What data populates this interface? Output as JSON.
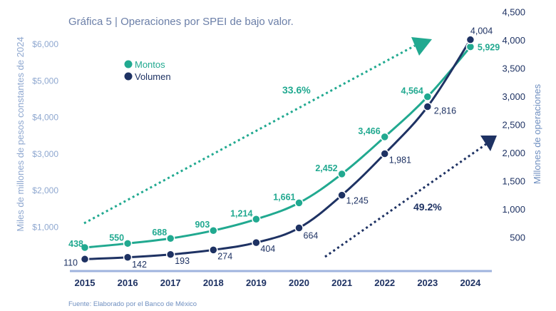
{
  "chart_data": {
    "type": "line",
    "title": "Gráfica 5 | Operaciones por SPEI de bajo valor.",
    "categories": [
      "2015",
      "2016",
      "2017",
      "2018",
      "2019",
      "2020",
      "2021",
      "2022",
      "2023",
      "2024"
    ],
    "y_left": {
      "label": "Miles de millones de pesos constantes de 2024",
      "ticks": [
        "$1,000",
        "$2,000",
        "$3,000",
        "$4,000",
        "$5,000",
        "$6,000"
      ],
      "tick_values": [
        1000,
        2000,
        3000,
        4000,
        5000,
        6000
      ],
      "range": [
        0,
        6600
      ]
    },
    "y_right": {
      "label": "Millones de operaciones",
      "ticks": [
        "500",
        "1,000",
        "1,500",
        "2,000",
        "2,500",
        "3,000",
        "3,500",
        "4,000",
        "4,500"
      ],
      "tick_values": [
        500,
        1000,
        1500,
        2000,
        2500,
        3000,
        3500,
        4000,
        4500
      ],
      "range": [
        0,
        4500
      ]
    },
    "series": [
      {
        "name": "Montos",
        "axis": "left",
        "color": "#21a990",
        "values": [
          438,
          550,
          688,
          903,
          1214,
          1661,
          2452,
          3466,
          4564,
          5929
        ],
        "labels": [
          "438",
          "550",
          "688",
          "903",
          "1,214",
          "1,661",
          "2,452",
          "3,466",
          "4,564",
          "5,929"
        ]
      },
      {
        "name": "Volumen",
        "axis": "right",
        "color": "#1e3263",
        "values": [
          110,
          142,
          193,
          274,
          404,
          664,
          1245,
          1981,
          2816,
          4004
        ],
        "labels": [
          "110",
          "142",
          "193",
          "274",
          "404",
          "664",
          "1,245",
          "1,981",
          "2,816",
          "4,004"
        ]
      }
    ],
    "annotations": [
      {
        "text": "33.6%",
        "series": "Montos"
      },
      {
        "text": "49.2%",
        "series": "Volumen"
      }
    ],
    "legend": "top-left",
    "grid": false
  },
  "source": "Fuente: Elaborado por el Banco de México"
}
